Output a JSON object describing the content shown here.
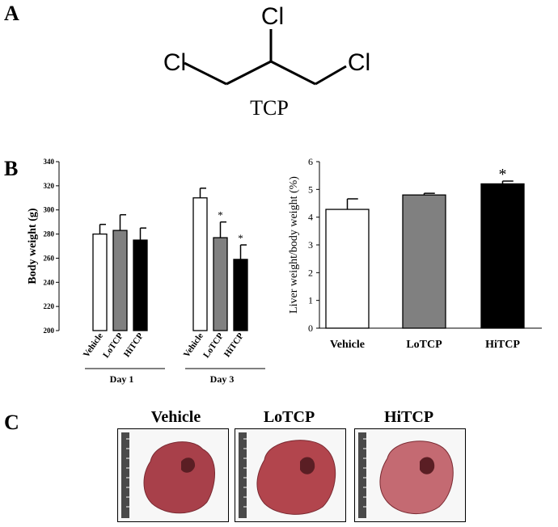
{
  "panels": {
    "a": "A",
    "b": "B",
    "c": "C"
  },
  "molecule": {
    "atoms": [
      "Cl",
      "Cl",
      "Cl"
    ],
    "name": "TCP"
  },
  "chart_data": [
    {
      "type": "bar",
      "ylabel": "Body weight (g)",
      "ylim": [
        200,
        340
      ],
      "yticks": [
        "200",
        "220",
        "240",
        "260",
        "280",
        "300",
        "320",
        "340"
      ],
      "groups": [
        {
          "label": "Day 1",
          "categories": [
            "Vehicle",
            "LoTCP",
            "HiTCP"
          ],
          "values": [
            280,
            283,
            275
          ],
          "errors": [
            8,
            13,
            10
          ],
          "significant": [
            false,
            false,
            false
          ]
        },
        {
          "label": "Day 3",
          "categories": [
            "Vehicle",
            "LoTCP",
            "HiTCP"
          ],
          "values": [
            310,
            277,
            259
          ],
          "errors": [
            8,
            13,
            12
          ],
          "significant": [
            false,
            true,
            true
          ]
        }
      ],
      "colors": [
        "#ffffff",
        "#808080",
        "#000000"
      ],
      "marker": "*"
    },
    {
      "type": "bar",
      "ylabel": "Liver weight/body weight (%)",
      "ylim": [
        0,
        6
      ],
      "yticks": [
        "0",
        "1",
        "2",
        "3",
        "4",
        "5",
        "6"
      ],
      "categories": [
        "Vehicle",
        "LoTCP",
        "HiTCP"
      ],
      "values": [
        4.28,
        4.8,
        5.2
      ],
      "errors": [
        0.38,
        0.06,
        0.1
      ],
      "significant": [
        false,
        false,
        true
      ],
      "colors": [
        "#ffffff",
        "#808080",
        "#000000"
      ],
      "marker": "*"
    }
  ],
  "livers": {
    "titles": [
      "Vehicle",
      "LoTCP",
      "HiTCP"
    ],
    "colors": [
      "#a8404a",
      "#b2454d",
      "#c46a72"
    ]
  }
}
